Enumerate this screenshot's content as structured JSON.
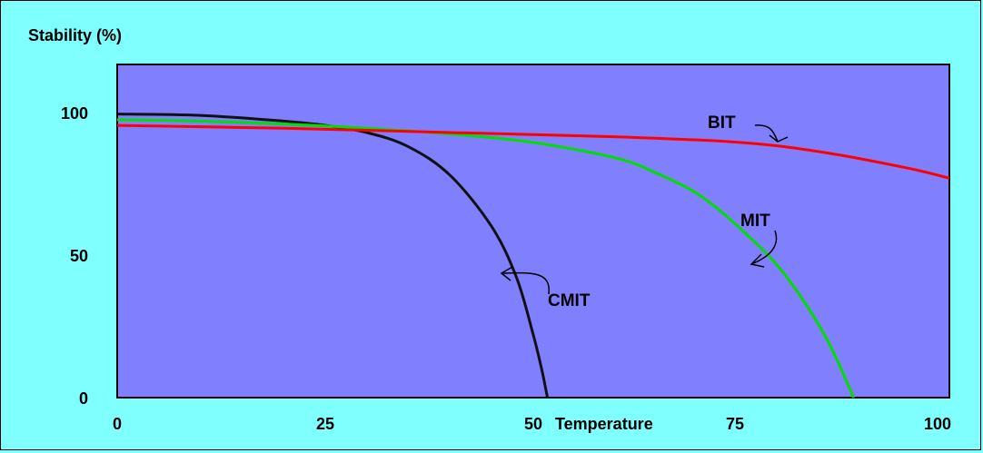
{
  "chart_data": {
    "type": "line",
    "ylabel": "Stability (%)",
    "xlabel": "Temperature",
    "xlim": [
      0,
      100
    ],
    "ylim": [
      0,
      110
    ],
    "x_ticks": [
      {
        "value": 0,
        "label": "0"
      },
      {
        "value": 25,
        "label": "25"
      },
      {
        "value": 50,
        "label": "50"
      },
      {
        "value": 75,
        "label": "75"
      },
      {
        "value": 100,
        "label": "100"
      }
    ],
    "y_ticks": [
      {
        "value": 0,
        "label": "0"
      },
      {
        "value": 50,
        "label": "50"
      },
      {
        "value": 100,
        "label": "100"
      }
    ],
    "grid": false,
    "colors": {
      "background": "#80ffff",
      "plot_area": "#8080ff"
    },
    "series": [
      {
        "name": "CMIT",
        "color": "#111111",
        "points": [
          [
            0,
            99.5
          ],
          [
            10,
            99
          ],
          [
            20,
            97
          ],
          [
            25,
            95.5
          ],
          [
            30,
            93
          ],
          [
            35,
            88
          ],
          [
            40,
            78
          ],
          [
            45,
            60
          ],
          [
            48,
            42
          ],
          [
            50,
            22
          ],
          [
            51,
            10
          ],
          [
            51.7,
            0
          ]
        ]
      },
      {
        "name": "MIT",
        "color": "#00dd00",
        "points": [
          [
            0,
            97.5
          ],
          [
            10,
            97
          ],
          [
            20,
            96
          ],
          [
            30,
            94.5
          ],
          [
            40,
            92.5
          ],
          [
            50,
            89.5
          ],
          [
            60,
            84
          ],
          [
            65,
            78.5
          ],
          [
            70,
            71
          ],
          [
            75,
            59
          ],
          [
            80,
            44
          ],
          [
            85,
            22
          ],
          [
            88.5,
            0
          ]
        ]
      },
      {
        "name": "BIT",
        "color": "#ff0000",
        "points": [
          [
            0,
            95.5
          ],
          [
            20,
            94.5
          ],
          [
            40,
            93
          ],
          [
            60,
            91.5
          ],
          [
            75,
            89.5
          ],
          [
            85,
            86
          ],
          [
            95,
            80.5
          ],
          [
            100,
            77
          ]
        ]
      }
    ],
    "annotations": [
      {
        "label_bind": "chart_data.series.0.name",
        "target_series": 0,
        "target_x": 46
      },
      {
        "label_bind": "chart_data.series.1.name",
        "target_series": 1,
        "target_x": 76
      },
      {
        "label_bind": "chart_data.series.2.name",
        "target_series": 2,
        "target_x": 80
      }
    ]
  }
}
